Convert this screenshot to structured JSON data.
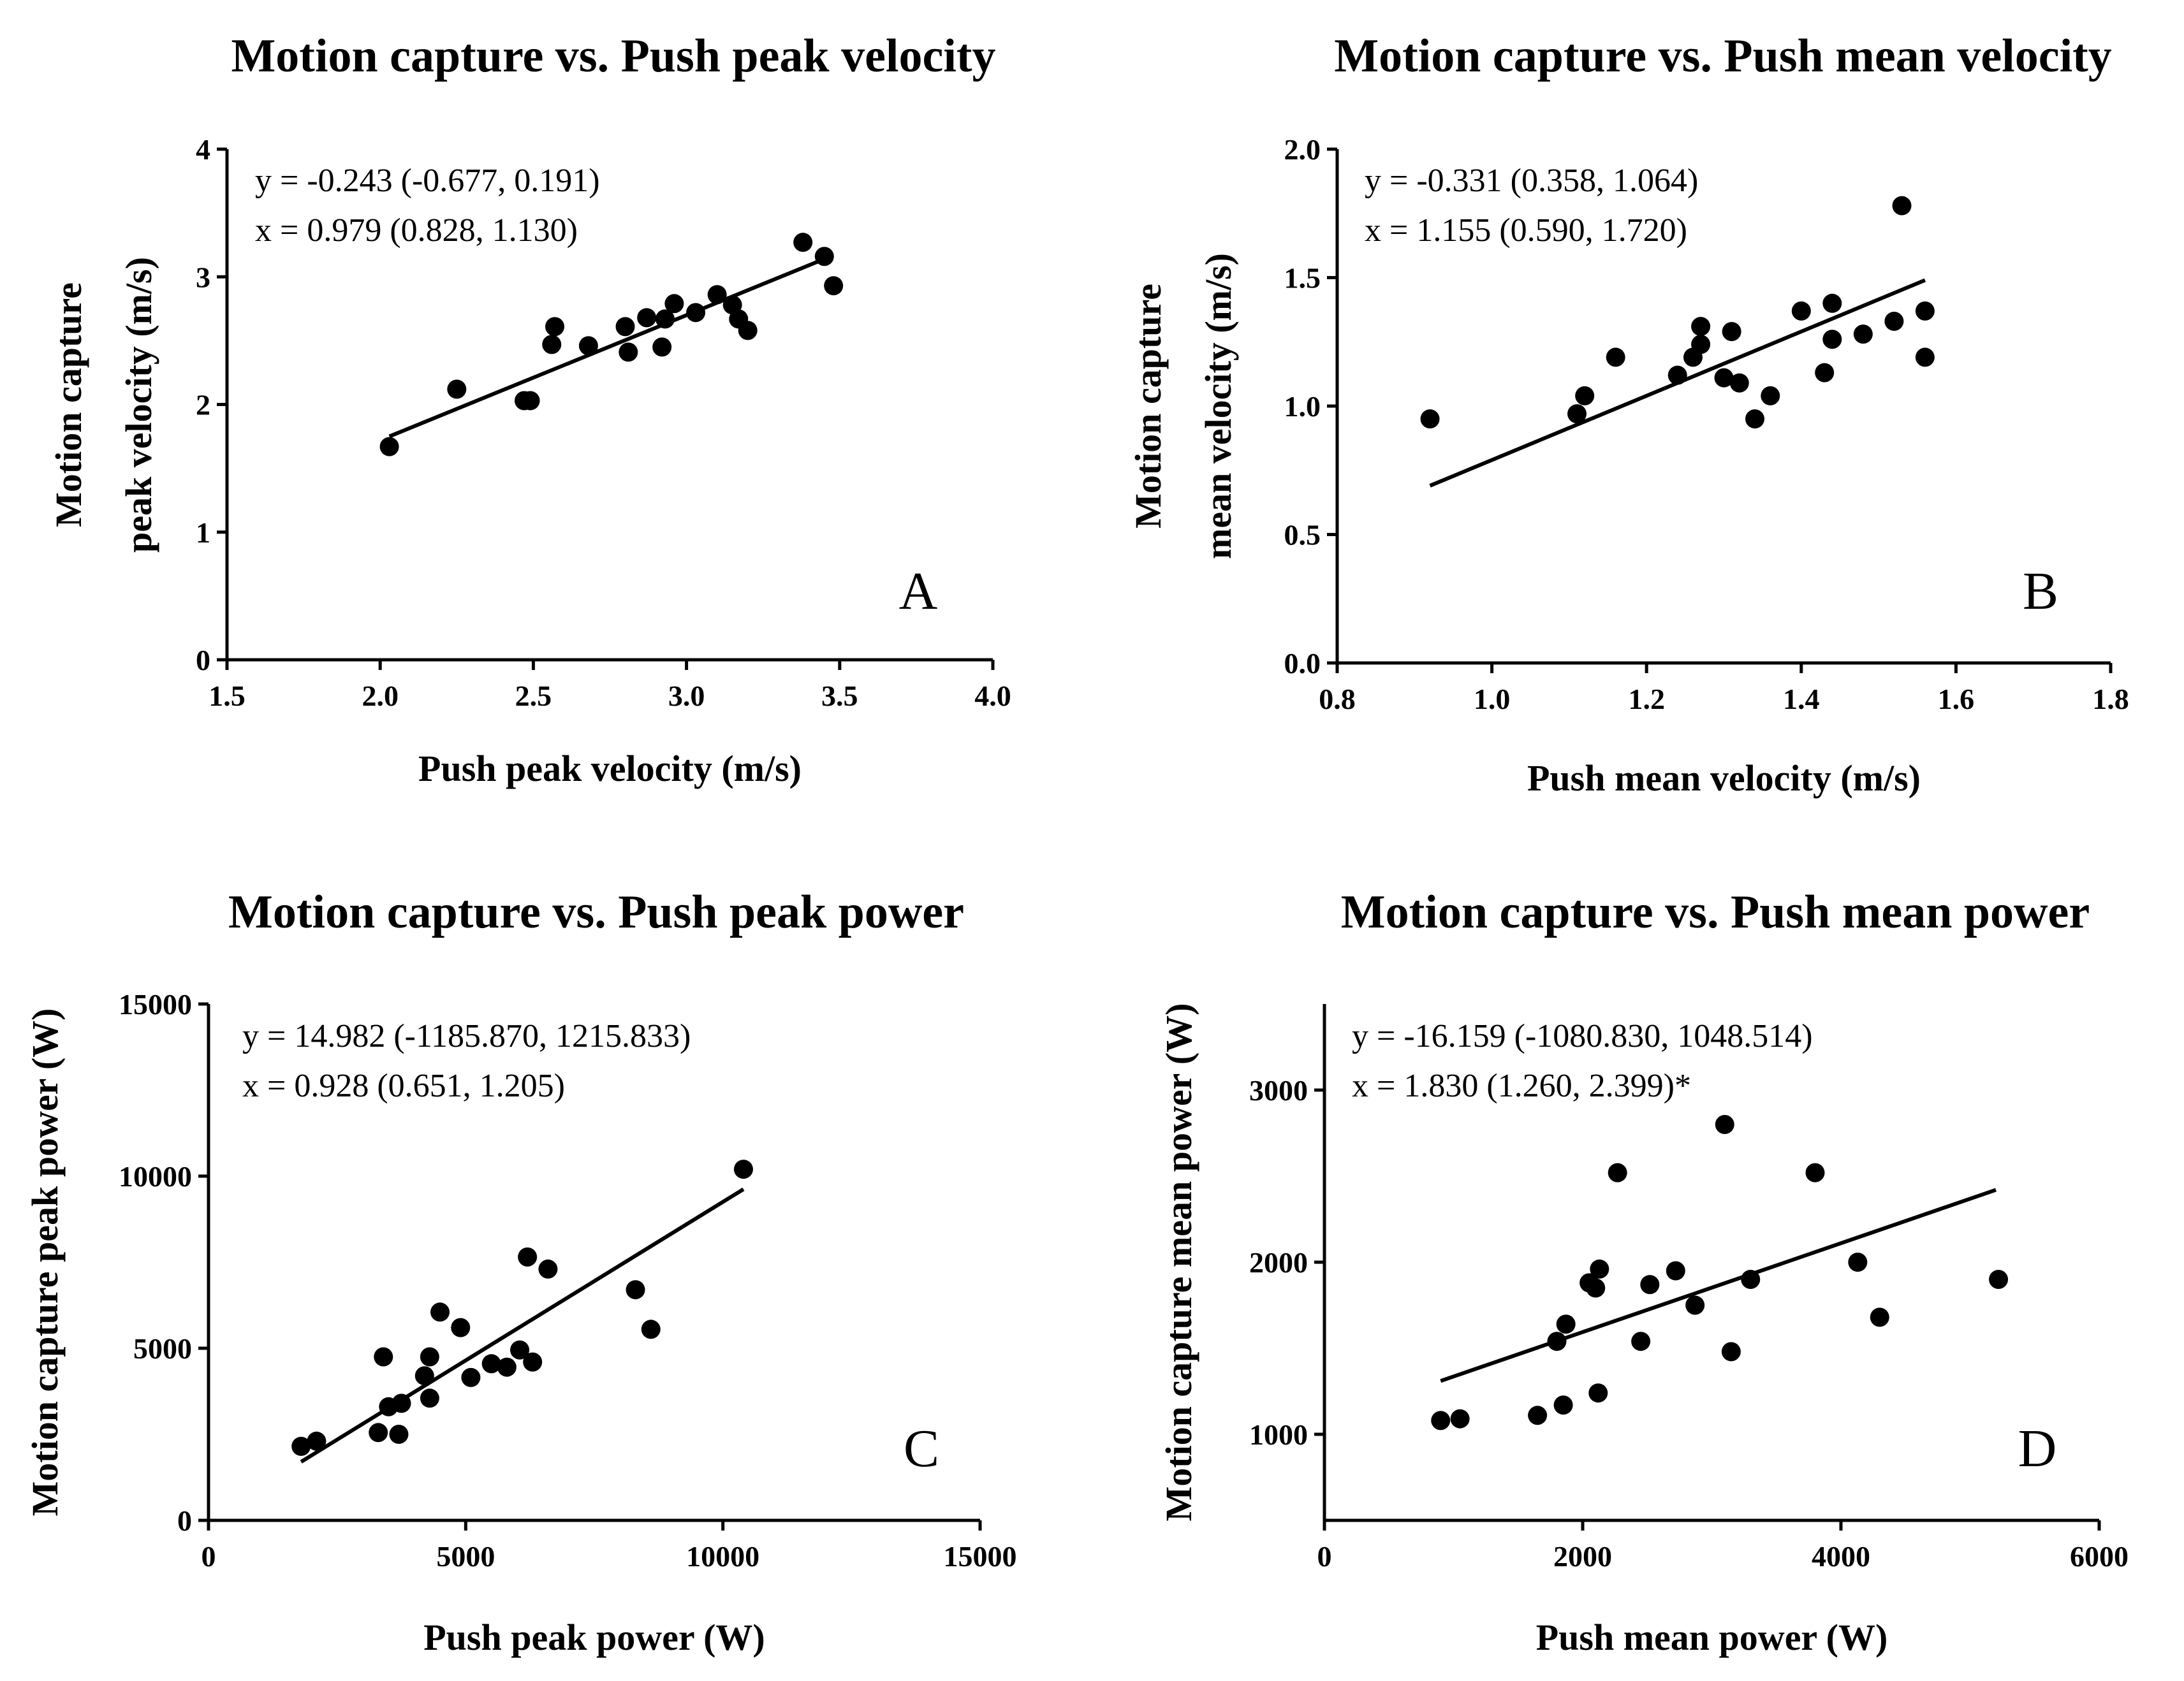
{
  "chart_data": [
    {
      "type": "scatter",
      "title": "Motion capture vs. Push peak velocity",
      "xlabel": "Push peak velocity (m/s)",
      "ylabel": [
        "Motion capture",
        "peak velocity (m/s)"
      ],
      "xlim": [
        1.5,
        4.0
      ],
      "ylim": [
        0,
        4
      ],
      "xticks": [
        "1.5",
        "2.0",
        "2.5",
        "3.0",
        "3.5",
        "4.0"
      ],
      "yticks": [
        "0",
        "1",
        "2",
        "3",
        "4"
      ],
      "annotations": [
        "y = -0.243 (-0.677, 0.191)",
        "x = 0.979 (0.828, 1.130)"
      ],
      "panel_letter": "A",
      "grid": false,
      "points": [
        [
          2.03,
          1.67
        ],
        [
          2.25,
          2.12
        ],
        [
          2.47,
          2.03
        ],
        [
          2.49,
          2.03
        ],
        [
          2.56,
          2.47
        ],
        [
          2.57,
          2.61
        ],
        [
          2.68,
          2.46
        ],
        [
          2.8,
          2.61
        ],
        [
          2.81,
          2.41
        ],
        [
          2.87,
          2.68
        ],
        [
          2.92,
          2.45
        ],
        [
          2.93,
          2.67
        ],
        [
          2.96,
          2.79
        ],
        [
          3.03,
          2.72
        ],
        [
          3.1,
          2.86
        ],
        [
          3.15,
          2.78
        ],
        [
          3.17,
          2.67
        ],
        [
          3.2,
          2.58
        ],
        [
          3.38,
          3.27
        ],
        [
          3.45,
          3.16
        ],
        [
          3.48,
          2.93
        ]
      ],
      "fit_line": [
        [
          2.03,
          1.75
        ],
        [
          3.45,
          3.14
        ]
      ]
    },
    {
      "type": "scatter",
      "title": "Motion capture vs. Push mean velocity",
      "xlabel": "Push mean velocity (m/s)",
      "ylabel": [
        "Motion capture",
        "mean velocity (m/s)"
      ],
      "xlim": [
        0.8,
        1.8
      ],
      "ylim": [
        0.0,
        2.0
      ],
      "xticks": [
        "0.8",
        "1.0",
        "1.2",
        "1.4",
        "1.6",
        "1.8"
      ],
      "yticks": [
        "0.0",
        "0.5",
        "1.0",
        "1.5",
        "2.0"
      ],
      "annotations": [
        "y = -0.331 (0.358, 1.064)",
        "x = 1.155 (0.590, 1.720)"
      ],
      "panel_letter": "B",
      "grid": false,
      "points": [
        [
          0.92,
          0.95
        ],
        [
          1.11,
          0.97
        ],
        [
          1.12,
          1.04
        ],
        [
          1.16,
          1.19
        ],
        [
          1.24,
          1.12
        ],
        [
          1.26,
          1.19
        ],
        [
          1.27,
          1.24
        ],
        [
          1.27,
          1.31
        ],
        [
          1.3,
          1.11
        ],
        [
          1.31,
          1.29
        ],
        [
          1.32,
          1.09
        ],
        [
          1.34,
          0.95
        ],
        [
          1.36,
          1.04
        ],
        [
          1.4,
          1.37
        ],
        [
          1.43,
          1.13
        ],
        [
          1.44,
          1.26
        ],
        [
          1.44,
          1.4
        ],
        [
          1.48,
          1.28
        ],
        [
          1.52,
          1.33
        ],
        [
          1.53,
          1.78
        ],
        [
          1.56,
          1.19
        ],
        [
          1.56,
          1.37
        ]
      ],
      "fit_line": [
        [
          0.92,
          0.69
        ],
        [
          1.56,
          1.49
        ]
      ]
    },
    {
      "type": "scatter",
      "title": "Motion capture vs. Push peak power",
      "xlabel": "Push peak power (W)",
      "ylabel": [
        "Motion capture peak power (W)"
      ],
      "xlim": [
        0,
        15000
      ],
      "ylim": [
        0,
        15000
      ],
      "xticks": [
        "0",
        "5000",
        "10000",
        "15000"
      ],
      "yticks": [
        "0",
        "5000",
        "10000",
        "15000"
      ],
      "annotations": [
        "y = 14.982 (-1185.870, 1215.833)",
        "x = 0.928 (0.651, 1.205)"
      ],
      "panel_letter": "C",
      "grid": false,
      "points": [
        [
          1800,
          2150
        ],
        [
          2100,
          2300
        ],
        [
          3300,
          2550
        ],
        [
          3400,
          4750
        ],
        [
          3500,
          3300
        ],
        [
          3700,
          2500
        ],
        [
          3750,
          3400
        ],
        [
          4200,
          4200
        ],
        [
          4300,
          3550
        ],
        [
          4300,
          4750
        ],
        [
          4500,
          6050
        ],
        [
          4900,
          5600
        ],
        [
          5100,
          4150
        ],
        [
          5500,
          4550
        ],
        [
          5800,
          4450
        ],
        [
          6050,
          4950
        ],
        [
          6200,
          7650
        ],
        [
          6300,
          4600
        ],
        [
          6600,
          7300
        ],
        [
          8300,
          6700
        ],
        [
          8600,
          5550
        ],
        [
          10400,
          10200
        ]
      ],
      "fit_line": [
        [
          1800,
          1700
        ],
        [
          10400,
          9620
        ]
      ]
    },
    {
      "type": "scatter",
      "title": "Motion capture vs. Push mean power",
      "xlabel": "Push mean power (W)",
      "ylabel": [
        "Motion capture mean power (W)"
      ],
      "xlim": [
        0,
        6000
      ],
      "ylim": [
        500,
        3500
      ],
      "xticks": [
        "0",
        "2000",
        "4000",
        "6000"
      ],
      "yticks": [
        "1000",
        "2000",
        "3000"
      ],
      "annotations": [
        "y = -16.159 (-1080.830, 1048.514)",
        "x = 1.830 (1.260, 2.399)*"
      ],
      "panel_letter": "D",
      "grid": false,
      "points": [
        [
          900,
          1080
        ],
        [
          1050,
          1090
        ],
        [
          1650,
          1110
        ],
        [
          1800,
          1540
        ],
        [
          1850,
          1170
        ],
        [
          1870,
          1640
        ],
        [
          2050,
          1880
        ],
        [
          2100,
          1850
        ],
        [
          2120,
          1240
        ],
        [
          2130,
          1960
        ],
        [
          2270,
          2520
        ],
        [
          2450,
          1540
        ],
        [
          2520,
          1870
        ],
        [
          2720,
          1950
        ],
        [
          2870,
          1750
        ],
        [
          3100,
          2800
        ],
        [
          3150,
          1480
        ],
        [
          3300,
          1900
        ],
        [
          3800,
          2520
        ],
        [
          4130,
          2000
        ],
        [
          4300,
          1680
        ],
        [
          5220,
          1900
        ]
      ],
      "fit_line": [
        [
          900,
          1310
        ],
        [
          5200,
          2420
        ]
      ]
    }
  ]
}
